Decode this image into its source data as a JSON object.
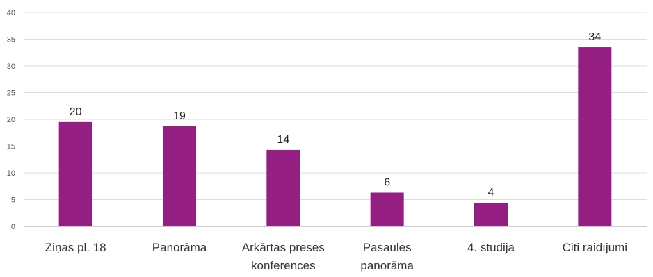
{
  "chart_data": {
    "type": "bar",
    "categories": [
      [
        "Ziņas pl. 18"
      ],
      [
        "Panorāma"
      ],
      [
        "Ārkārtas preses",
        "konferences"
      ],
      [
        "Pasaules",
        "panorāma"
      ],
      [
        "4. studija"
      ],
      [
        "Citi raidījumi"
      ]
    ],
    "values": [
      19.5,
      18.7,
      14.3,
      6.3,
      4.4,
      33.5
    ],
    "data_labels": [
      "20",
      "19",
      "14",
      "6",
      "4",
      "34"
    ],
    "y_ticks": [
      0,
      5,
      10,
      15,
      20,
      25,
      30,
      35,
      40
    ],
    "ylim": [
      0,
      40
    ],
    "grid": true,
    "legend": "none",
    "colors": {
      "bar": "#941e81",
      "grid": "#dddddd",
      "axis": "#999999"
    }
  }
}
